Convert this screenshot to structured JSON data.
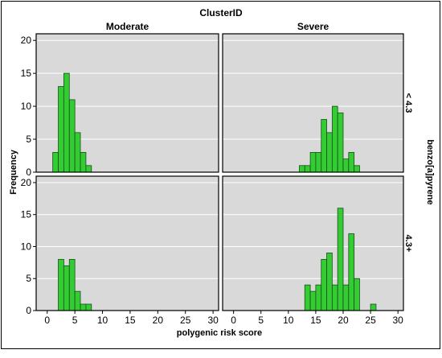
{
  "chart_data": {
    "type": "bar",
    "subtype": "histogram-facet-grid",
    "title": "ClusterID",
    "xlabel": "polygenic risk score",
    "ylabel": "Frequency",
    "row_variable": "benzo[a]pyrene",
    "columns": [
      "Moderate",
      "Severe"
    ],
    "rows": [
      "< 4.3",
      "4.3+"
    ],
    "x_ticks": [
      "0",
      "5",
      "10",
      "15",
      "20",
      "25",
      "30"
    ],
    "y_ticks": [
      "0",
      "5",
      "10",
      "15",
      "20"
    ],
    "xlim": [
      -2,
      31
    ],
    "ylim": [
      0,
      21
    ],
    "bin_width": 1,
    "grid": "horizontal",
    "colors": {
      "bar_fill": "#33cc33",
      "bar_stroke": "#1a4d1a",
      "panel_bg": "#d9d9d9",
      "grid": "#ffffff"
    },
    "panels": [
      {
        "column": "Moderate",
        "row": "< 4.3",
        "bins": [
          [
            1,
            3
          ],
          [
            2,
            13
          ],
          [
            3,
            15
          ],
          [
            4,
            11
          ],
          [
            5,
            6
          ],
          [
            6,
            3
          ],
          [
            7,
            1
          ]
        ]
      },
      {
        "column": "Severe",
        "row": "< 4.3",
        "bins": [
          [
            12,
            1
          ],
          [
            13,
            1
          ],
          [
            14,
            3
          ],
          [
            15,
            3
          ],
          [
            16,
            8
          ],
          [
            17,
            6
          ],
          [
            18,
            10
          ],
          [
            19,
            9
          ],
          [
            20,
            2
          ],
          [
            21,
            3
          ],
          [
            22,
            1
          ]
        ]
      },
      {
        "column": "Moderate",
        "row": "4.3+",
        "bins": [
          [
            2,
            8
          ],
          [
            3,
            7
          ],
          [
            4,
            8
          ],
          [
            5,
            3
          ],
          [
            6,
            1
          ],
          [
            7,
            1
          ]
        ]
      },
      {
        "column": "Severe",
        "row": "4.3+",
        "bins": [
          [
            13,
            4
          ],
          [
            14,
            3
          ],
          [
            15,
            4
          ],
          [
            16,
            8
          ],
          [
            17,
            9
          ],
          [
            18,
            4
          ],
          [
            19,
            16
          ],
          [
            20,
            4
          ],
          [
            21,
            12
          ],
          [
            22,
            5
          ],
          [
            25,
            1
          ]
        ]
      }
    ]
  }
}
